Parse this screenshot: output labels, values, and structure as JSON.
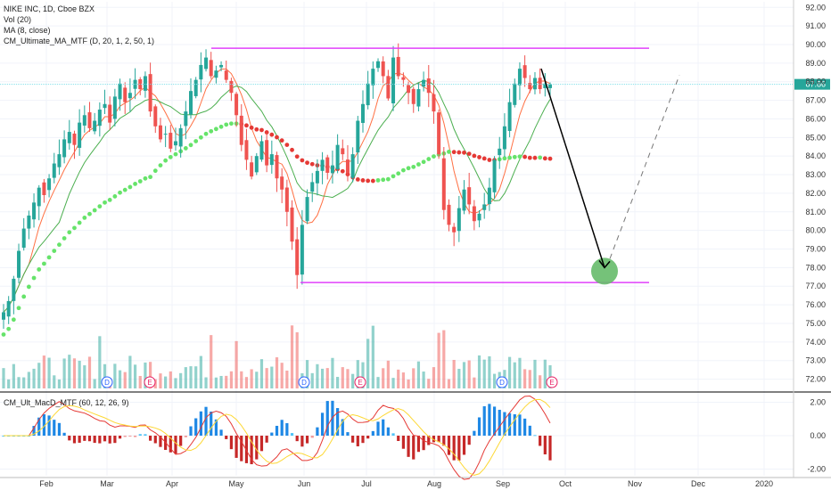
{
  "legend": {
    "line1": "NIKE INC, 1D, Cboe BZX",
    "line2": "Vol (20)",
    "line3": "MA (8, close)",
    "line4": "CM_Ultimate_MA_MTF (D, 20, 1, 2, 50, 1)",
    "macd": "CM_Ult_MacD_MTF (60, 12, 26, 9)"
  },
  "colors": {
    "up": "#26a69a",
    "down": "#ef5350",
    "resistance": "#e040fb",
    "ma_green": "#4caf50",
    "ma_red": "#e53935",
    "price_line": "#80deea",
    "target_circle": "#66bb6a"
  },
  "chart_data": {
    "type": "candlestick",
    "price_axis": {
      "ticks": [
        "92.00",
        "91.00",
        "90.00",
        "89.00",
        "88.00",
        "87.00",
        "86.00",
        "85.00",
        "84.00",
        "83.00",
        "82.00",
        "81.00",
        "80.00",
        "79.00",
        "78.00",
        "77.00",
        "76.00",
        "75.00",
        "74.00",
        "73.00",
        "72.00"
      ],
      "ylim": [
        71.5,
        92.3
      ]
    },
    "last_price": "87.86",
    "time_axis": {
      "labels": [
        "Feb",
        "Mar",
        "Apr",
        "May",
        "Jun",
        "Jul",
        "Aug",
        "Sep",
        "Oct",
        "Nov",
        "Dec",
        "2020"
      ]
    },
    "levels": {
      "resistance": 89.8,
      "support": 77.2
    },
    "macd_axis": {
      "ticks": [
        "2.00",
        "0.00",
        "-2.00"
      ],
      "ylim": [
        -2.4,
        2.4
      ]
    },
    "earnings_markers": [
      "E",
      "E",
      "E"
    ],
    "dividend_markers": [
      "D",
      "D",
      "D"
    ],
    "projection": {
      "from": 88.7,
      "to": 78.0,
      "then": 88.5
    },
    "series": [
      {
        "name": "Price",
        "values": [
          75.6,
          76.2,
          77.4,
          78.9,
          80.1,
          80.8,
          81.5,
          82.3,
          81.9,
          82.8,
          83.6,
          84.1,
          84.9,
          85.3,
          84.6,
          85.8,
          86.2,
          85.5,
          85.9,
          86.5,
          86.8,
          85.8,
          87.2,
          87.9,
          86.9,
          87.4,
          88.1,
          87.6,
          88.3,
          86.4,
          85.6,
          84.9,
          85.2,
          84.4,
          84.8,
          85.5,
          86.4,
          87.5,
          88.1,
          88.9,
          89.3,
          88.3,
          88.6,
          88.9,
          88.1,
          87.4,
          86.2,
          84.6,
          83.8,
          82.9,
          84.0,
          84.8,
          83.5,
          84.1,
          82.8,
          82.2,
          81.0,
          79.4,
          77.6,
          80.3,
          81.8,
          82.6,
          83.2,
          83.8,
          83.1,
          83.5,
          84.6,
          84.1,
          83.1,
          84.1,
          85.9,
          86.8,
          87.9,
          88.7,
          89.1,
          88.3,
          87.1,
          89.3,
          88.3,
          88.1,
          87.4,
          86.8,
          87.6,
          88.1,
          87.4,
          86.4,
          84.1,
          81.1,
          80.3,
          79.9,
          81.2,
          82.2,
          81.4,
          80.5,
          80.9,
          81.4,
          82.3,
          83.8,
          84.4,
          85.6,
          86.9,
          87.9,
          88.7,
          88.2,
          87.6,
          88.2,
          87.6,
          87.9,
          87.86
        ]
      }
    ]
  }
}
